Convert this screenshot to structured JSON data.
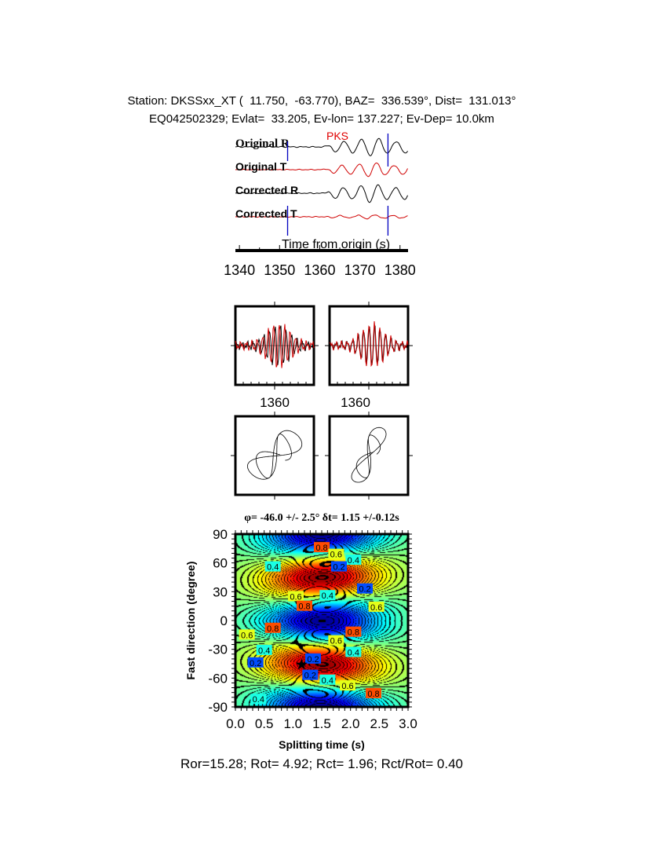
{
  "header": {
    "line1": "Station: DKSSxx_XT (  11.750,  -63.770), BAZ=  336.539°, Dist=  131.013°",
    "line2": "EQ042502329; Evlat=  33.205, Ev-lon= 137.227; Ev-Dep= 10.0km"
  },
  "chart_data": [
    {
      "type": "line",
      "panel": "seismograms",
      "phase_label": "PKS",
      "traces": [
        {
          "name": "Original R",
          "color": "#000000"
        },
        {
          "name": "Original T",
          "color": "#d00000"
        },
        {
          "name": "Corrected R",
          "color": "#000000"
        },
        {
          "name": "Corrected T",
          "color": "#d00000"
        }
      ],
      "window_marker_color": "#0000c0",
      "xlabel": "Time from origin (s)",
      "xticks": [
        1340,
        1350,
        1360,
        1370,
        1380
      ],
      "xlim": [
        1339,
        1382
      ],
      "window": [
        1352,
        1377
      ]
    },
    {
      "type": "line",
      "panel": "waveform-comparison",
      "xticks": [
        1360
      ],
      "colors": [
        "#000000",
        "#d00000"
      ]
    },
    {
      "type": "line",
      "panel": "particle-motion"
    },
    {
      "type": "heatmap",
      "panel": "energy-grid",
      "title": "φ= -46.0 +/- 2.5° δt= 1.15 +/-0.12s",
      "xlabel": "Splitting time (s)",
      "ylabel": "Fast direction (degree)",
      "xlim": [
        0,
        3
      ],
      "ylim": [
        -90,
        90
      ],
      "xticks": [
        "0.0",
        "0.5",
        "1.0",
        "1.5",
        "2.0",
        "2.5",
        "3.0"
      ],
      "yticks": [
        "90",
        "60",
        "30",
        "0",
        "-30",
        "-60",
        "-90"
      ],
      "best_fit": {
        "phi": -46.0,
        "dt": 1.15
      },
      "contour_labels": [
        {
          "text": "0.8",
          "x": 1.5,
          "y": 76
        },
        {
          "text": "0.6",
          "x": 1.75,
          "y": 69
        },
        {
          "text": "0.4",
          "x": 2.05,
          "y": 63
        },
        {
          "text": "0.2",
          "x": 1.8,
          "y": 56
        },
        {
          "text": "0.2",
          "x": 2.25,
          "y": 33
        },
        {
          "text": "0.4",
          "x": 0.65,
          "y": 56
        },
        {
          "text": "0.6",
          "x": 1.05,
          "y": 25
        },
        {
          "text": "0.8",
          "x": 1.2,
          "y": 15
        },
        {
          "text": "0.4",
          "x": 1.6,
          "y": 26
        },
        {
          "text": "0.6",
          "x": 2.45,
          "y": 14
        },
        {
          "text": "0.8",
          "x": 0.65,
          "y": -8
        },
        {
          "text": "0.6",
          "x": 0.2,
          "y": -15
        },
        {
          "text": "0.8",
          "x": 2.05,
          "y": -12
        },
        {
          "text": "0.6",
          "x": 1.75,
          "y": -21
        },
        {
          "text": "0.4",
          "x": 2.05,
          "y": -33
        },
        {
          "text": "0.4",
          "x": 0.5,
          "y": -31
        },
        {
          "text": "0.2",
          "x": 1.35,
          "y": -40
        },
        {
          "text": "0.2",
          "x": 0.35,
          "y": -44
        },
        {
          "text": "0.2",
          "x": 1.3,
          "y": -57
        },
        {
          "text": "0.4",
          "x": 1.6,
          "y": -62
        },
        {
          "text": "0.6",
          "x": 1.95,
          "y": -68
        },
        {
          "text": "0.8",
          "x": 2.4,
          "y": -76
        },
        {
          "text": "0.4",
          "x": 0.4,
          "y": -82
        }
      ]
    }
  ],
  "footer": "Ror=15.28; Rot= 4.92; Rct= 1.96; Rct/Rot= 0.40"
}
